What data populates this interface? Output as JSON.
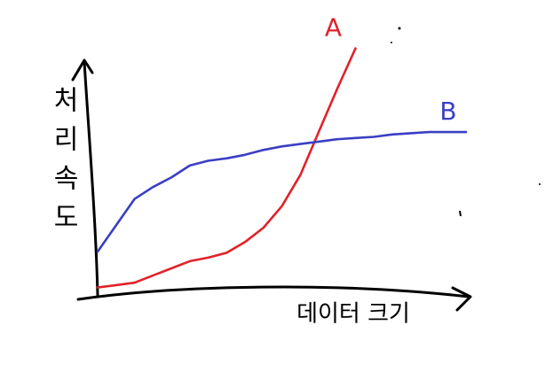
{
  "chart_data": {
    "type": "line",
    "x_label": "데이터 크기",
    "y_label": "처리속도",
    "x": [
      0,
      0.5,
      1,
      1.5,
      2,
      2.5,
      3,
      3.5,
      4,
      4.5,
      5,
      5.5,
      6,
      6.5,
      7,
      7.5,
      8,
      8.5,
      9,
      9.5,
      10
    ],
    "xlim": [
      0,
      10
    ],
    "ylim": [
      0,
      11
    ],
    "series": [
      {
        "name": "A",
        "color": "#e0222a",
        "values": [
          0.2,
          0.3,
          0.4,
          0.7,
          1.0,
          1.3,
          1.45,
          1.65,
          2.1,
          2.7,
          3.6,
          4.9,
          6.7,
          8.5,
          10.2,
          null,
          null,
          null,
          null,
          null,
          null
        ]
      },
      {
        "name": "B",
        "color": "#3a3fc4",
        "values": [
          1.7,
          2.8,
          3.9,
          4.4,
          4.8,
          5.3,
          5.5,
          5.6,
          5.75,
          5.95,
          6.1,
          6.2,
          6.3,
          6.4,
          6.45,
          6.5,
          6.6,
          6.65,
          6.7,
          6.7,
          6.7
        ]
      }
    ]
  }
}
